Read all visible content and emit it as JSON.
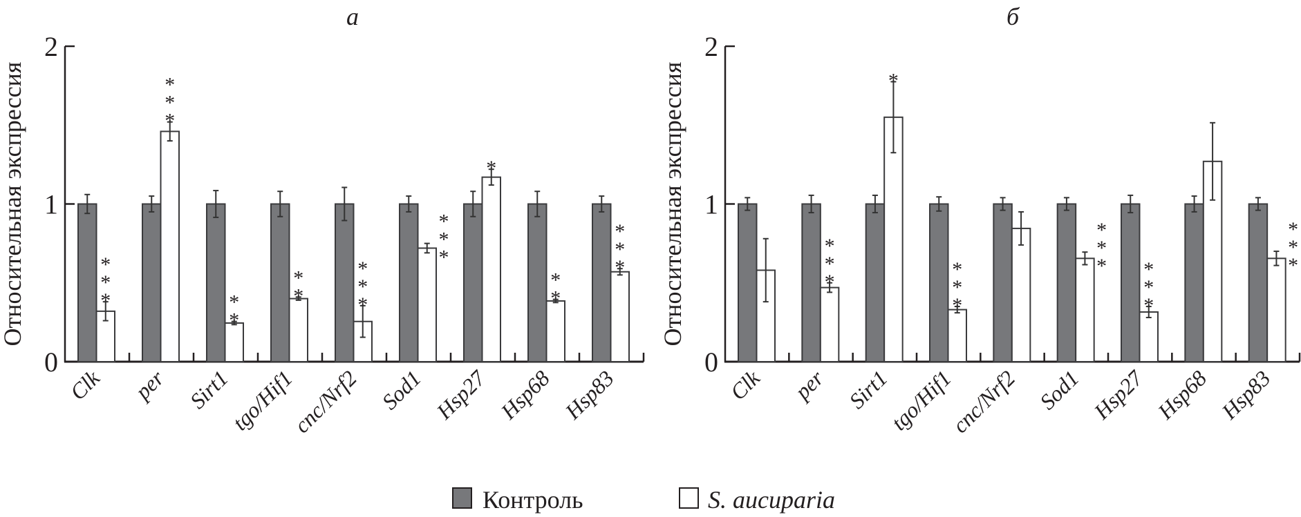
{
  "chart_data": {
    "type": "bar",
    "legend": {
      "placement": "bottom-center",
      "entries": [
        {
          "name": "Контроль",
          "color": "#77787b"
        },
        {
          "name": "S. aucuparia",
          "color": "#ffffff"
        }
      ]
    },
    "panels": [
      {
        "title": "а",
        "ylabel": "Относительная экспрессия",
        "ylim": [
          0,
          2
        ],
        "yticks": [
          "0",
          "1",
          "2"
        ],
        "categories": [
          "Clk",
          "per",
          "Sirt1",
          "tgo/Hif1",
          "cnc/Nrf2",
          "Sod1",
          "Hsp27",
          "Hsp68",
          "Hsp83"
        ],
        "series": [
          {
            "name": "Контроль",
            "values": [
              1,
              1,
              1,
              1,
              1,
              1,
              1,
              1,
              1
            ],
            "errors": [
              0.06,
              0.05,
              0.085,
              0.08,
              0.105,
              0.05,
              0.08,
              0.08,
              0.05
            ],
            "significance": [
              "",
              "",
              "",
              "",
              "",
              "",
              "",
              "",
              ""
            ]
          },
          {
            "name": "S. aucuparia",
            "values": [
              0.32,
              1.46,
              0.245,
              0.4,
              0.255,
              0.72,
              1.17,
              0.385,
              0.57
            ],
            "errors": [
              0.06,
              0.06,
              0.01,
              0.01,
              0.1,
              0.03,
              0.05,
              0.01,
              0.02
            ],
            "significance": [
              "***",
              "***",
              "**",
              "**",
              "***",
              "***",
              "*",
              "**",
              "***"
            ]
          }
        ]
      },
      {
        "title": "б",
        "ylabel": "Относительная экспрессия",
        "ylim": [
          0,
          2
        ],
        "yticks": [
          "0",
          "1",
          "2"
        ],
        "categories": [
          "Clk",
          "per",
          "Sirt1",
          "tgo/Hif1",
          "cnc/Nrf2",
          "Sod1",
          "Hsp27",
          "Hsp68",
          "Hsp83"
        ],
        "series": [
          {
            "name": "Контроль",
            "values": [
              1,
              1,
              1,
              1,
              1,
              1,
              1,
              1,
              1
            ],
            "errors": [
              0.04,
              0.055,
              0.055,
              0.045,
              0.04,
              0.04,
              0.055,
              0.05,
              0.04
            ],
            "significance": [
              "",
              "",
              "",
              "",
              "",
              "",
              "",
              "",
              ""
            ]
          },
          {
            "name": "S. aucuparia",
            "values": [
              0.58,
              0.47,
              1.55,
              0.33,
              0.845,
              0.655,
              0.315,
              1.27,
              0.655
            ],
            "errors": [
              0.2,
              0.03,
              0.225,
              0.02,
              0.105,
              0.04,
              0.035,
              0.245,
              0.045
            ],
            "significance": [
              "",
              "***",
              "*",
              "***",
              "",
              "***",
              "***",
              "",
              "***"
            ]
          }
        ]
      }
    ]
  }
}
